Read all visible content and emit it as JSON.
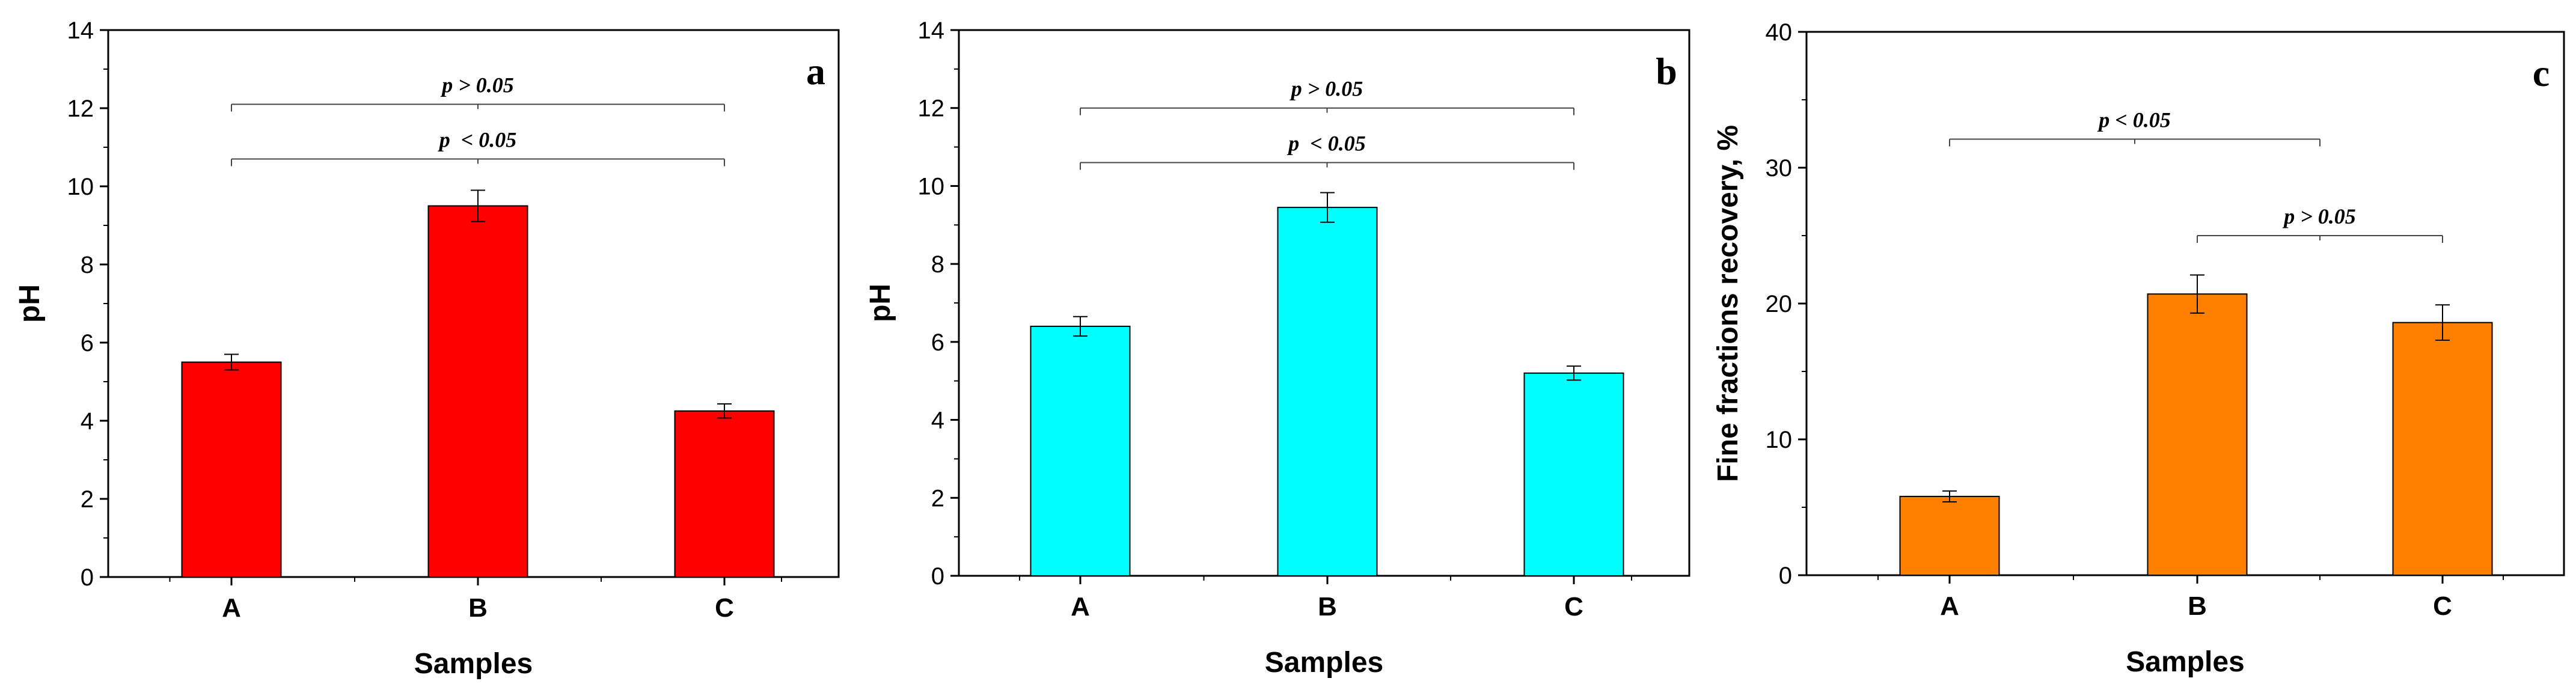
{
  "chart_data": [
    {
      "type": "bar",
      "panel_label": "a",
      "xlabel": "Samples",
      "ylabel": "pH",
      "ylim": [
        0,
        14
      ],
      "yticks": [
        "0",
        "2",
        "4",
        "6",
        "8",
        "10",
        "12",
        "14"
      ],
      "categories": [
        "A",
        "B",
        "C"
      ],
      "values": [
        5.5,
        9.5,
        4.25
      ],
      "errors": [
        0.2,
        0.4,
        0.18
      ],
      "bar_color": "#ff0000",
      "annotations": [
        {
          "from": 0,
          "to": 2,
          "y": 12.1,
          "label": "p > 0.05"
        },
        {
          "from": 0,
          "to": 2,
          "y": 10.7,
          "label": "p  < 0.05"
        }
      ]
    },
    {
      "type": "bar",
      "panel_label": "b",
      "xlabel": "Samples",
      "ylabel": "pH",
      "ylim": [
        0,
        14
      ],
      "yticks": [
        "0",
        "2",
        "4",
        "6",
        "8",
        "10",
        "12",
        "14"
      ],
      "categories": [
        "A",
        "B",
        "C"
      ],
      "values": [
        6.4,
        9.45,
        5.2
      ],
      "errors": [
        0.25,
        0.38,
        0.18
      ],
      "bar_color": "#00ffff",
      "annotations": [
        {
          "from": 0,
          "to": 2,
          "y": 12.0,
          "label": "p > 0.05"
        },
        {
          "from": 0,
          "to": 2,
          "y": 10.6,
          "label": "p  < 0.05"
        }
      ]
    },
    {
      "type": "bar",
      "panel_label": "c",
      "xlabel": "Samples",
      "ylabel": "Fine fractions recovery, %",
      "ylim": [
        0,
        40
      ],
      "yticks": [
        "0",
        "10",
        "20",
        "30",
        "40"
      ],
      "categories": [
        "A",
        "B",
        "C"
      ],
      "values": [
        5.8,
        20.7,
        18.6
      ],
      "errors": [
        0.4,
        1.4,
        1.3
      ],
      "bar_color": "#ff8000",
      "annotations": [
        {
          "from": 0,
          "to": 1.5,
          "y": 32.1,
          "label": "p < 0.05"
        },
        {
          "from": 1,
          "to": 2,
          "y": 25.0,
          "label": "p > 0.05"
        }
      ]
    }
  ]
}
